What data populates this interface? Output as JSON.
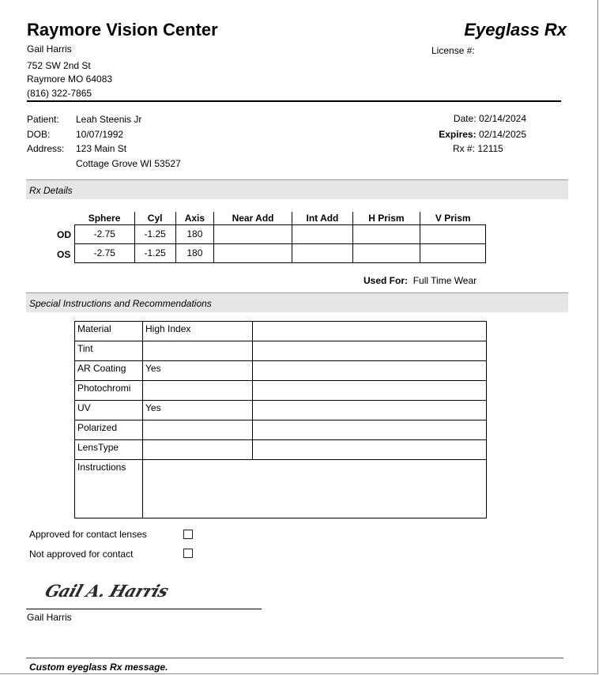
{
  "header": {
    "clinic": "Raymore Vision Center",
    "doc_title": "Eyeglass Rx",
    "doctor": "Gail Harris",
    "license_label": "License #:",
    "address1": "752 SW 2nd St",
    "address2": "Raymore MO 64083",
    "phone": "(816) 322-7865"
  },
  "patient": {
    "name_label": "Patient:",
    "name": "Leah Steenis Jr",
    "dob_label": "DOB:",
    "dob": "10/07/1992",
    "address_label": "Address:",
    "address1": "123 Main St",
    "address2": "Cottage Grove WI 53527"
  },
  "rx_meta": {
    "date_label": "Date:",
    "date": "02/14/2024",
    "expires_label": "Expires:",
    "expires": "02/14/2025",
    "rx_label": "Rx #:",
    "rx": "12115"
  },
  "rx": {
    "section": "Rx Details",
    "columns": [
      "Sphere",
      "Cyl",
      "Axis",
      "Near Add",
      "Int Add",
      "H Prism",
      "V Prism"
    ],
    "rows": [
      {
        "eye": "OD",
        "values": [
          "-2.75",
          "-1.25",
          "180",
          "",
          "",
          "",
          ""
        ]
      },
      {
        "eye": "OS",
        "values": [
          "-2.75",
          "-1.25",
          "180",
          "",
          "",
          "",
          ""
        ]
      }
    ],
    "used_for_label": "Used For:",
    "used_for": "Full Time Wear"
  },
  "special": {
    "section": "Special Instructions and Recommendations",
    "rows": [
      {
        "label": "Material",
        "value": "High Index"
      },
      {
        "label": "Tint",
        "value": ""
      },
      {
        "label": "AR Coating",
        "value": "Yes"
      },
      {
        "label": "Photochromi",
        "value": ""
      },
      {
        "label": "UV",
        "value": "Yes"
      },
      {
        "label": "Polarized",
        "value": ""
      },
      {
        "label": "LensType",
        "value": ""
      }
    ],
    "instructions_label": "Instructions",
    "instructions": ""
  },
  "contacts": {
    "approved": "Approved for contact lenses",
    "approved_checked": false,
    "not_approved": "Not approved for contact",
    "not_approved_checked": false
  },
  "signature": {
    "signed": "Gail A. Harris",
    "name": "Gail Harris"
  },
  "footer": {
    "message": "Custom eyeglass Rx message."
  }
}
